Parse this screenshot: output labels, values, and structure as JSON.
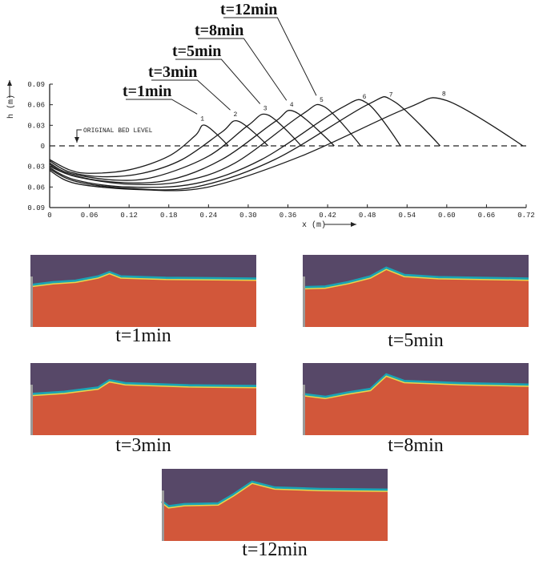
{
  "chart_data": {
    "type": "line",
    "xlabel": "x (m)",
    "ylabel": "h (m)",
    "xlim": [
      0,
      0.72
    ],
    "ylim": [
      -0.09,
      0.09
    ],
    "xticks": [
      0,
      0.06,
      0.12,
      0.18,
      0.24,
      {
        "value": 0.3,
        "label": "0.30"
      },
      0.36,
      0.42,
      0.48,
      0.54,
      {
        "value": 0.6,
        "label": "0.60"
      },
      0.66,
      0.72
    ],
    "yticks": [
      0.09,
      0.06,
      0.03,
      0,
      {
        "value": -0.03,
        "label": "0.03"
      },
      {
        "value": -0.06,
        "label": "0.06"
      },
      {
        "value": -0.09,
        "label": "0.09"
      }
    ],
    "reference_line": 0,
    "reference_label": "ORIGINAL BED LEVEL",
    "time_labels": [
      "t=1min",
      "t=3min",
      "t=5min",
      "t=8min",
      "t=12min"
    ],
    "color": "#1a1a1a",
    "series": [
      {
        "name": "1",
        "x": [
          0,
          0.03,
          0.06,
          0.12,
          0.18,
          0.22,
          0.235,
          0.27
        ],
        "values": [
          -0.02,
          -0.035,
          -0.04,
          -0.035,
          -0.015,
          0.015,
          0.03,
          0
        ]
      },
      {
        "name": "2",
        "x": [
          0,
          0.03,
          0.08,
          0.14,
          0.2,
          0.26,
          0.285,
          0.33
        ],
        "values": [
          -0.022,
          -0.038,
          -0.045,
          -0.04,
          -0.02,
          0.02,
          0.036,
          0
        ]
      },
      {
        "name": "3",
        "x": [
          0,
          0.03,
          0.1,
          0.16,
          0.24,
          0.3,
          0.33,
          0.38
        ],
        "values": [
          -0.025,
          -0.04,
          -0.05,
          -0.045,
          -0.015,
          0.03,
          0.045,
          0
        ]
      },
      {
        "name": "4",
        "x": [
          0,
          0.03,
          0.1,
          0.18,
          0.26,
          0.34,
          0.37,
          0.43
        ],
        "values": [
          -0.027,
          -0.042,
          -0.053,
          -0.05,
          -0.02,
          0.035,
          0.05,
          0
        ]
      },
      {
        "name": "5",
        "x": [
          0,
          0.04,
          0.12,
          0.2,
          0.28,
          0.38,
          0.415,
          0.47
        ],
        "values": [
          -0.03,
          -0.045,
          -0.056,
          -0.052,
          -0.025,
          0.045,
          0.057,
          0
        ]
      },
      {
        "name": "6",
        "x": [
          0,
          0.04,
          0.12,
          0.22,
          0.32,
          0.44,
          0.48,
          0.53
        ],
        "values": [
          -0.032,
          -0.05,
          -0.06,
          -0.055,
          -0.02,
          0.055,
          0.062,
          0
        ]
      },
      {
        "name": "7",
        "x": [
          0,
          0.04,
          0.12,
          0.22,
          0.34,
          0.48,
          0.52,
          0.59
        ],
        "values": [
          -0.034,
          -0.052,
          -0.062,
          -0.06,
          -0.02,
          0.06,
          0.065,
          0
        ]
      },
      {
        "name": "8",
        "x": [
          0,
          0.04,
          0.14,
          0.24,
          0.38,
          0.54,
          0.6,
          0.715
        ],
        "values": [
          -0.036,
          -0.055,
          -0.064,
          -0.06,
          -0.015,
          0.055,
          0.066,
          0
        ]
      }
    ]
  },
  "panels": [
    {
      "caption": "t=1min"
    },
    {
      "caption": "t=5min"
    },
    {
      "caption": "t=3min"
    },
    {
      "caption": "t=8min"
    },
    {
      "caption": "t=12min"
    }
  ]
}
